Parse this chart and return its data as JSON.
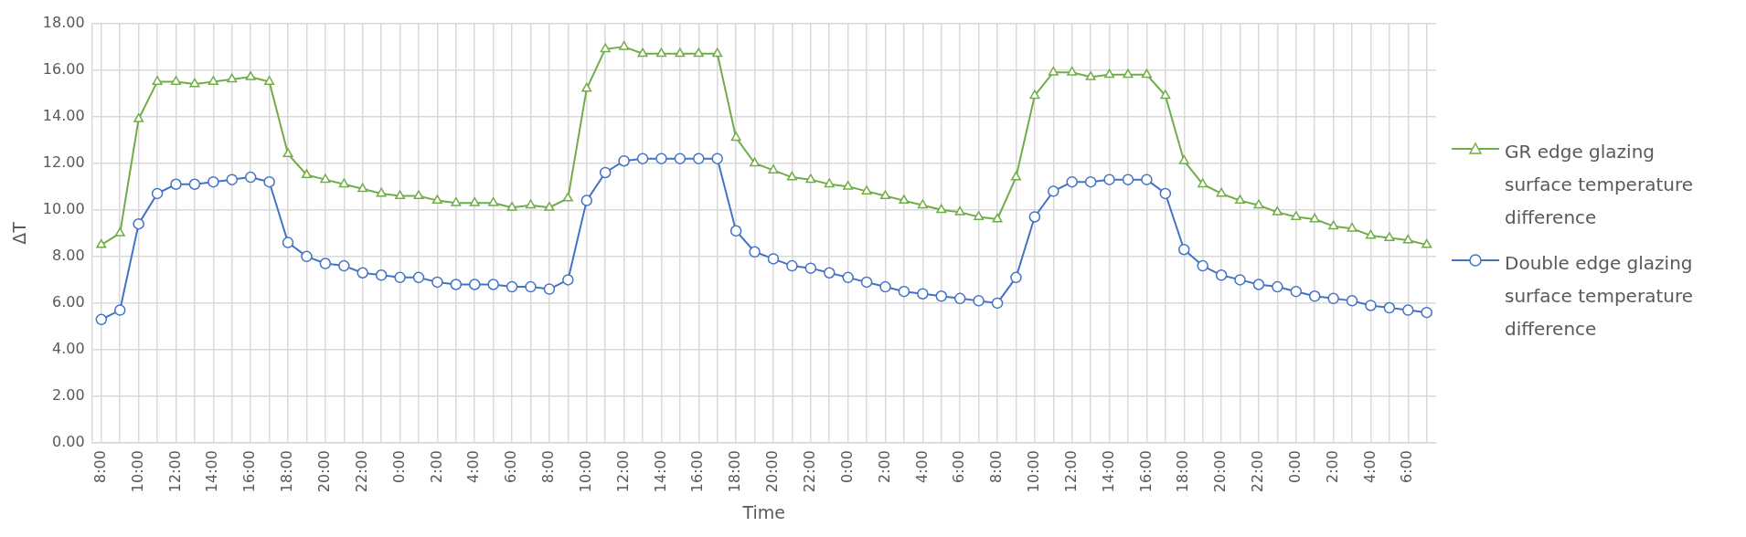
{
  "chart_data": {
    "type": "line",
    "xlabel": "Time",
    "ylabel": "ΔT",
    "categories": [
      "8:00",
      null,
      "10:00",
      null,
      "12:00",
      null,
      "14:00",
      null,
      "16:00",
      null,
      "18:00",
      null,
      "20:00",
      null,
      "22:00",
      null,
      "0:00",
      null,
      "2:00",
      null,
      "4:00",
      null,
      "6:00",
      null,
      "8:00",
      null,
      "10:00",
      null,
      "12:00",
      null,
      "14:00",
      null,
      "16:00",
      null,
      "18:00",
      null,
      "20:00",
      null,
      "22:00",
      null,
      "0:00",
      null,
      "2:00",
      null,
      "4:00",
      null,
      "6:00",
      null,
      "8:00",
      null,
      "10:00",
      null,
      "12:00",
      null,
      "14:00",
      null,
      "16:00",
      null,
      "18:00",
      null,
      "20:00",
      null,
      "22:00",
      null,
      "0:00",
      null,
      "2:00",
      null,
      "4:00",
      null,
      "6:00",
      null
    ],
    "series": [
      {
        "name": "GR edge glazing surface temperature difference",
        "color": "#70ad47",
        "marker": "triangle",
        "values": [
          8.5,
          9.0,
          13.9,
          15.5,
          15.5,
          15.4,
          15.5,
          15.6,
          15.7,
          15.5,
          12.4,
          11.5,
          11.3,
          11.1,
          10.9,
          10.7,
          10.6,
          10.6,
          10.4,
          10.3,
          10.3,
          10.3,
          10.1,
          10.2,
          10.1,
          10.5,
          15.2,
          16.9,
          17.0,
          16.7,
          16.7,
          16.7,
          16.7,
          16.7,
          13.1,
          12.0,
          11.7,
          11.4,
          11.3,
          11.1,
          11.0,
          10.8,
          10.6,
          10.4,
          10.2,
          10.0,
          9.9,
          9.7,
          9.6,
          11.4,
          14.9,
          15.9,
          15.9,
          15.7,
          15.8,
          15.8,
          15.8,
          14.9,
          12.1,
          11.1,
          10.7,
          10.4,
          10.2,
          9.9,
          9.7,
          9.6,
          9.3,
          9.2,
          8.9,
          8.8,
          8.7,
          8.5
        ]
      },
      {
        "name": "Double edge glazing surface temperature difference",
        "color": "#4472c4",
        "marker": "circle",
        "values": [
          5.3,
          5.7,
          9.4,
          10.7,
          11.1,
          11.1,
          11.2,
          11.3,
          11.4,
          11.2,
          8.6,
          8.0,
          7.7,
          7.6,
          7.3,
          7.2,
          7.1,
          7.1,
          6.9,
          6.8,
          6.8,
          6.8,
          6.7,
          6.7,
          6.6,
          7.0,
          10.4,
          11.6,
          12.1,
          12.2,
          12.2,
          12.2,
          12.2,
          12.2,
          9.1,
          8.2,
          7.9,
          7.6,
          7.5,
          7.3,
          7.1,
          6.9,
          6.7,
          6.5,
          6.4,
          6.3,
          6.2,
          6.1,
          6.0,
          7.1,
          9.7,
          10.8,
          11.2,
          11.2,
          11.3,
          11.3,
          11.3,
          10.7,
          8.3,
          7.6,
          7.2,
          7.0,
          6.8,
          6.7,
          6.5,
          6.3,
          6.2,
          6.1,
          5.9,
          5.8,
          5.7,
          5.6
        ]
      }
    ],
    "ylim": [
      0,
      18
    ],
    "yticks": [
      {
        "value": 0,
        "label": "0.00"
      },
      {
        "value": 2,
        "label": "2.00"
      },
      {
        "value": 4,
        "label": "4.00"
      },
      {
        "value": 6,
        "label": "6.00"
      },
      {
        "value": 8,
        "label": "8.00"
      },
      {
        "value": 10,
        "label": "10.00"
      },
      {
        "value": 12,
        "label": "12.00"
      },
      {
        "value": 14,
        "label": "14.00"
      },
      {
        "value": 16,
        "label": "16.00"
      },
      {
        "value": 18,
        "label": "18.00"
      }
    ],
    "grid": true,
    "legend": "right",
    "line_style": "solid"
  }
}
